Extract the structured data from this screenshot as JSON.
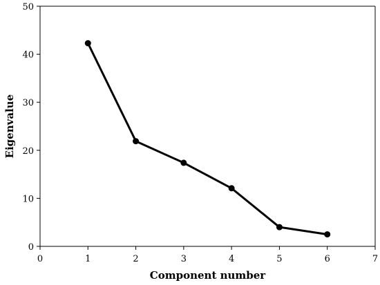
{
  "chart_data": {
    "type": "line",
    "title": "",
    "xlabel": "Component number",
    "ylabel": "Eigenvalue",
    "xlim": [
      0,
      7
    ],
    "ylim": [
      0,
      50
    ],
    "xticks": [
      0,
      1,
      2,
      3,
      4,
      5,
      6,
      7
    ],
    "yticks": [
      0,
      10,
      20,
      30,
      40,
      50
    ],
    "grid": false,
    "legend": "none",
    "series": [
      {
        "x": [
          1,
          2,
          3,
          4,
          5,
          6
        ],
        "values": [
          42.3,
          21.9,
          17.4,
          12.1,
          4.0,
          2.5
        ],
        "color": "#000000",
        "marker": "circle"
      }
    ]
  }
}
